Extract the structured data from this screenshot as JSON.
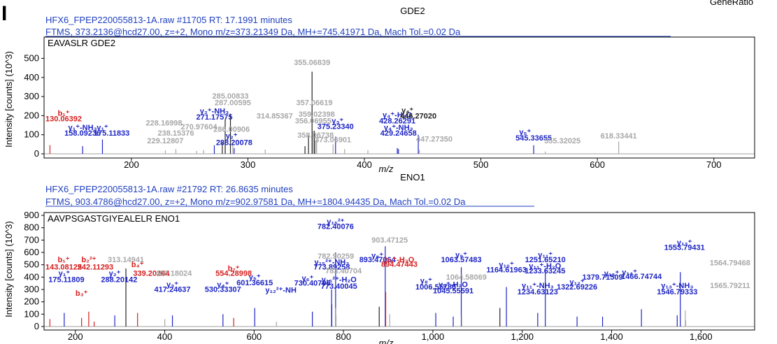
{
  "panel_letter": "I",
  "corner_text": "GeneRatio",
  "colors": {
    "grey": "#a8a8a8",
    "blue": "#1d24c4",
    "red": "#d61f1f",
    "black": "#222222",
    "header": "#1f3fbf"
  },
  "chart_data": [
    {
      "type": "bar",
      "title": "GDE2",
      "header_line1": "HFX6_FPEP220055813-1A.raw #11705 RT: 17.1991 minutes",
      "header_line2": "FTMS, 373.2136@hcd27.00, z=+2, Mono m/z=373.21349 Da, MH+=745.41971 Da, Mach Tol.=0.02 Da",
      "peptide_label": "EAVASLR GDE2",
      "xlabel": "m/z",
      "ylabel": "Intensity [counts] (10^3)",
      "xlim": [
        125,
        735
      ],
      "ylim": [
        0,
        520
      ],
      "xticks": [
        200,
        300,
        400,
        500,
        600,
        700
      ],
      "xtick_labels": [
        "200",
        "300",
        "400",
        "500",
        "600",
        "700"
      ],
      "yticks": [
        0,
        100,
        200,
        300,
        400,
        500
      ],
      "peaks": [
        {
          "mz": 130.06,
          "i": 45,
          "c": "red"
        },
        {
          "mz": 158.09,
          "i": 40,
          "c": "blue"
        },
        {
          "mz": 175.12,
          "i": 75,
          "c": "blue"
        },
        {
          "mz": 229.13,
          "i": 18,
          "c": "grey"
        },
        {
          "mz": 238.15,
          "i": 25,
          "c": "grey"
        },
        {
          "mz": 256.0,
          "i": 15,
          "c": "grey"
        },
        {
          "mz": 262.0,
          "i": 20,
          "c": "grey"
        },
        {
          "mz": 271.18,
          "i": 45,
          "c": "blue"
        },
        {
          "mz": 278.0,
          "i": 60,
          "c": "black"
        },
        {
          "mz": 280.5,
          "i": 180,
          "c": "black"
        },
        {
          "mz": 285.01,
          "i": 210,
          "c": "black"
        },
        {
          "mz": 287.01,
          "i": 60,
          "c": "grey"
        },
        {
          "mz": 288.2,
          "i": 30,
          "c": "blue"
        },
        {
          "mz": 314.85,
          "i": 22,
          "c": "grey"
        },
        {
          "mz": 349.0,
          "i": 40,
          "c": "black"
        },
        {
          "mz": 352.0,
          "i": 95,
          "c": "black"
        },
        {
          "mz": 355.07,
          "i": 430,
          "c": "black"
        },
        {
          "mz": 356.07,
          "i": 120,
          "c": "grey"
        },
        {
          "mz": 357.07,
          "i": 120,
          "c": "black"
        },
        {
          "mz": 358.07,
          "i": 70,
          "c": "grey"
        },
        {
          "mz": 359.02,
          "i": 80,
          "c": "grey"
        },
        {
          "mz": 373.07,
          "i": 50,
          "c": "grey"
        },
        {
          "mz": 375.23,
          "i": 90,
          "c": "blue"
        },
        {
          "mz": 383.0,
          "i": 25,
          "c": "grey"
        },
        {
          "mz": 403.0,
          "i": 20,
          "c": "grey"
        },
        {
          "mz": 428.26,
          "i": 30,
          "c": "blue"
        },
        {
          "mz": 429.25,
          "i": 25,
          "c": "blue"
        },
        {
          "mz": 446.27,
          "i": 100,
          "c": "blue"
        },
        {
          "mz": 447.27,
          "i": 20,
          "c": "grey"
        },
        {
          "mz": 545.34,
          "i": 45,
          "c": "blue"
        },
        {
          "mz": 555.32,
          "i": 12,
          "c": "grey"
        },
        {
          "mz": 618.33,
          "i": 65,
          "c": "grey"
        }
      ],
      "labels": [
        {
          "t": "355.06839",
          "mz": 355.07,
          "y": 465,
          "c": "grey"
        },
        {
          "t": "285.00833",
          "mz": 285.01,
          "y": 290,
          "c": "grey"
        },
        {
          "t": "287.00595",
          "mz": 287.01,
          "y": 255,
          "c": "grey"
        },
        {
          "t": "357.06619",
          "mz": 357.07,
          "y": 255,
          "c": "grey"
        },
        {
          "t": "b₁⁺",
          "mz": 130.06,
          "y": 200,
          "c": "red"
        },
        {
          "t": "130.06392",
          "mz": 139.0,
          "y": 170,
          "c": "red"
        },
        {
          "t": "y₂⁺-NH₃",
          "mz": 271.18,
          "y": 210,
          "c": "blue"
        },
        {
          "t": "271.17575",
          "mz": 271.18,
          "y": 180,
          "c": "blue"
        },
        {
          "t": "314.85367",
          "mz": 323.0,
          "y": 185,
          "c": "grey"
        },
        {
          "t": "359.02398",
          "mz": 359.02,
          "y": 195,
          "c": "grey"
        },
        {
          "t": "356.06955",
          "mz": 356.07,
          "y": 160,
          "c": "grey"
        },
        {
          "t": "y₃⁺",
          "mz": 377.0,
          "y": 160,
          "c": "blue"
        },
        {
          "t": "375.23340",
          "mz": 375.23,
          "y": 130,
          "c": "blue"
        },
        {
          "t": "y₄⁺-H₂O",
          "mz": 428.26,
          "y": 190,
          "c": "blue"
        },
        {
          "t": "428.26291",
          "mz": 428.26,
          "y": 160,
          "c": "blue"
        },
        {
          "t": "y₄⁺",
          "mz": 437.0,
          "y": 215,
          "c": "black"
        },
        {
          "t": "446.27020",
          "mz": 446.27,
          "y": 185,
          "c": "black"
        },
        {
          "t": "228.16998",
          "mz": 228.0,
          "y": 148,
          "c": "grey"
        },
        {
          "t": "270.97604",
          "mz": 258.0,
          "y": 128,
          "c": "grey"
        },
        {
          "t": "238.15376",
          "mz": 238.15,
          "y": 95,
          "c": "grey"
        },
        {
          "t": "y₁⁺-NH₃",
          "mz": 158.09,
          "y": 125,
          "c": "blue"
        },
        {
          "t": "y₁⁺",
          "mz": 175.12,
          "y": 125,
          "c": "blue"
        },
        {
          "t": "158.09236",
          "mz": 158.09,
          "y": 95,
          "c": "blue"
        },
        {
          "t": "175.11833",
          "mz": 183.0,
          "y": 95,
          "c": "blue"
        },
        {
          "t": "286.00906",
          "mz": 286.01,
          "y": 115,
          "c": "grey"
        },
        {
          "t": "y₄⁺-NH₃",
          "mz": 429.25,
          "y": 125,
          "c": "blue"
        },
        {
          "t": "429.24658",
          "mz": 429.25,
          "y": 95,
          "c": "blue"
        },
        {
          "t": "358.06738",
          "mz": 358.07,
          "y": 85,
          "c": "grey"
        },
        {
          "t": "229.12807",
          "mz": 229.13,
          "y": 55,
          "c": "grey"
        },
        {
          "t": "y₂⁺",
          "mz": 286.0,
          "y": 80,
          "c": "blue"
        },
        {
          "t": "288.20078",
          "mz": 288.2,
          "y": 45,
          "c": "blue"
        },
        {
          "t": "373.06901",
          "mz": 373.07,
          "y": 60,
          "c": "grey"
        },
        {
          "t": "447.27350",
          "mz": 460.0,
          "y": 65,
          "c": "grey"
        },
        {
          "t": "y₅⁺",
          "mz": 538.0,
          "y": 100,
          "c": "blue"
        },
        {
          "t": "545.33655",
          "mz": 545.34,
          "y": 70,
          "c": "blue"
        },
        {
          "t": "555.32025",
          "mz": 570.0,
          "y": 55,
          "c": "grey"
        },
        {
          "t": "618.33441",
          "mz": 618.33,
          "y": 80,
          "c": "grey"
        }
      ]
    },
    {
      "type": "bar",
      "title": "ENO1",
      "header_line1": "HFX6_FPEP220055813-1A.raw #21792 RT: 26.8635 minutes",
      "header_line2": "FTMS, 903.4786@hcd27.00, z=+2, Mono m/z=902.97581 Da, MH+=1804.94435 Da, Mach Tol.=0.02 Da",
      "peptide_label": "AAVPSGASTGIYEALELR ENO1",
      "xlabel": "m/z",
      "ylabel": "Intensity [counts] (10^3)",
      "xlim": [
        130,
        1720
      ],
      "ylim": [
        0,
        900
      ],
      "xticks": [
        200,
        400,
        600,
        800,
        1000,
        1200,
        1400,
        1600
      ],
      "xtick_labels": [
        "200",
        "400",
        "600",
        "800",
        "1,000",
        "1,200",
        "1,400",
        "1,600"
      ],
      "yticks": [
        0,
        100,
        200,
        300,
        400,
        500,
        600,
        700,
        800,
        900
      ],
      "peaks": [
        {
          "mz": 143.08,
          "i": 60,
          "c": "red"
        },
        {
          "mz": 175.12,
          "i": 110,
          "c": "blue"
        },
        {
          "mz": 214.0,
          "i": 70,
          "c": "red"
        },
        {
          "mz": 230.0,
          "i": 120,
          "c": "red"
        },
        {
          "mz": 242.11,
          "i": 40,
          "c": "red"
        },
        {
          "mz": 288.2,
          "i": 90,
          "c": "blue"
        },
        {
          "mz": 313.15,
          "i": 470,
          "c": "black"
        },
        {
          "mz": 339.2,
          "i": 110,
          "c": "red"
        },
        {
          "mz": 400.18,
          "i": 60,
          "c": "grey"
        },
        {
          "mz": 417.25,
          "i": 90,
          "c": "blue"
        },
        {
          "mz": 530.33,
          "i": 100,
          "c": "blue"
        },
        {
          "mz": 554.29,
          "i": 70,
          "c": "red"
        },
        {
          "mz": 601.37,
          "i": 150,
          "c": "blue"
        },
        {
          "mz": 650.0,
          "i": 40,
          "c": "grey"
        },
        {
          "mz": 730.41,
          "i": 120,
          "c": "blue"
        },
        {
          "mz": 773.4,
          "i": 300,
          "c": "blue"
        },
        {
          "mz": 773.89,
          "i": 180,
          "c": "blue"
        },
        {
          "mz": 782.4,
          "i": 600,
          "c": "blue"
        },
        {
          "mz": 782.9,
          "i": 150,
          "c": "grey"
        },
        {
          "mz": 783.4,
          "i": 90,
          "c": "grey"
        },
        {
          "mz": 880.0,
          "i": 160,
          "c": "black"
        },
        {
          "mz": 893.47,
          "i": 650,
          "c": "blue"
        },
        {
          "mz": 894.47,
          "i": 280,
          "c": "red"
        },
        {
          "mz": 903.47,
          "i": 100,
          "c": "grey"
        },
        {
          "mz": 1006.56,
          "i": 110,
          "c": "blue"
        },
        {
          "mz": 1045.56,
          "i": 80,
          "c": "blue"
        },
        {
          "mz": 1063.57,
          "i": 480,
          "c": "blue"
        },
        {
          "mz": 1064.58,
          "i": 90,
          "c": "grey"
        },
        {
          "mz": 1150.0,
          "i": 150,
          "c": "black"
        },
        {
          "mz": 1164.62,
          "i": 320,
          "c": "blue"
        },
        {
          "mz": 1234.63,
          "i": 110,
          "c": "blue"
        },
        {
          "mz": 1251.65,
          "i": 460,
          "c": "blue"
        },
        {
          "mz": 1322.69,
          "i": 80,
          "c": "blue"
        },
        {
          "mz": 1379.72,
          "i": 80,
          "c": "blue"
        },
        {
          "mz": 1466.75,
          "i": 140,
          "c": "blue"
        },
        {
          "mz": 1546.79,
          "i": 90,
          "c": "blue"
        },
        {
          "mz": 1553.79,
          "i": 440,
          "c": "blue"
        },
        {
          "mz": 1564.79,
          "i": 130,
          "c": "grey"
        },
        {
          "mz": 1565.79,
          "i": 50,
          "c": "grey"
        }
      ],
      "labels": [
        {
          "t": "y₁₅²⁺",
          "mz": 782.4,
          "y": 830,
          "c": "blue"
        },
        {
          "t": "782.40076",
          "mz": 782.4,
          "y": 790,
          "c": "blue"
        },
        {
          "t": "903.47125",
          "mz": 903.47,
          "y": 680,
          "c": "grey"
        },
        {
          "t": "y₁₃⁺",
          "mz": 1563.0,
          "y": 660,
          "c": "blue"
        },
        {
          "t": "1553.79431",
          "mz": 1563.0,
          "y": 620,
          "c": "blue"
        },
        {
          "t": "313.14941",
          "mz": 313.15,
          "y": 520,
          "c": "grey"
        },
        {
          "t": "782.90259",
          "mz": 782.9,
          "y": 550,
          "c": "grey"
        },
        {
          "t": "y₈⁺",
          "mz": 876.0,
          "y": 555,
          "c": "blue"
        },
        {
          "t": "893.47064",
          "mz": 876.0,
          "y": 520,
          "c": "blue"
        },
        {
          "t": "b₉⁺-H₂O",
          "mz": 925.0,
          "y": 520,
          "c": "red"
        },
        {
          "t": "894.47443",
          "mz": 925.0,
          "y": 485,
          "c": "red"
        },
        {
          "t": "y₉⁺",
          "mz": 1063.57,
          "y": 560,
          "c": "blue"
        },
        {
          "t": "1063.57483",
          "mz": 1063.57,
          "y": 520,
          "c": "blue"
        },
        {
          "t": "y₁₁⁺",
          "mz": 1251.65,
          "y": 560,
          "c": "blue"
        },
        {
          "t": "1251.65210",
          "mz": 1251.65,
          "y": 520,
          "c": "blue"
        },
        {
          "t": "1564.79468",
          "mz": 1665.0,
          "y": 495,
          "c": "grey"
        },
        {
          "t": "b₁⁺",
          "mz": 143.08,
          "y": 520,
          "c": "red"
        },
        {
          "t": "b₂²⁺",
          "mz": 230.0,
          "y": 520,
          "c": "red"
        },
        {
          "t": "143.08125",
          "mz": 168.0,
          "y": 460,
          "c": "red"
        },
        {
          "t": "242.11293",
          "mz": 245.0,
          "y": 460,
          "c": "red"
        },
        {
          "t": "b₄⁺",
          "mz": 339.2,
          "y": 480,
          "c": "red"
        },
        {
          "t": "339.20264",
          "mz": 370.0,
          "y": 410,
          "c": "red"
        },
        {
          "t": "y₁₅²⁺-NH₃",
          "mz": 773.89,
          "y": 500,
          "c": "blue"
        },
        {
          "t": "773.89258",
          "mz": 773.89,
          "y": 460,
          "c": "blue"
        },
        {
          "t": "y₁₀⁺",
          "mz": 1164.62,
          "y": 480,
          "c": "blue"
        },
        {
          "t": "1164.61963",
          "mz": 1164.62,
          "y": 440,
          "c": "blue"
        },
        {
          "t": "y₁₁⁺-H₂O",
          "mz": 1251.0,
          "y": 470,
          "c": "blue"
        },
        {
          "t": "1233.63245",
          "mz": 1251.0,
          "y": 430,
          "c": "blue"
        },
        {
          "t": "b₇⁺",
          "mz": 554.29,
          "y": 450,
          "c": "red"
        },
        {
          "t": "554.28998",
          "mz": 554.29,
          "y": 410,
          "c": "red"
        },
        {
          "t": "783.40704",
          "mz": 800.0,
          "y": 430,
          "c": "grey"
        },
        {
          "t": "y₁⁺",
          "mz": 175.12,
          "y": 410,
          "c": "blue"
        },
        {
          "t": "175.11809",
          "mz": 180.0,
          "y": 360,
          "c": "blue"
        },
        {
          "t": "y₂⁺",
          "mz": 288.2,
          "y": 410,
          "c": "blue"
        },
        {
          "t": "288.20142",
          "mz": 298.0,
          "y": 360,
          "c": "blue"
        },
        {
          "t": "400.18024",
          "mz": 420.0,
          "y": 410,
          "c": "grey"
        },
        {
          "t": "y₅⁺",
          "mz": 601.37,
          "y": 380,
          "c": "blue"
        },
        {
          "t": "601.36615",
          "mz": 601.37,
          "y": 335,
          "c": "blue"
        },
        {
          "t": "y₁₄⁺",
          "mz": 1440.0,
          "y": 420,
          "c": "blue"
        },
        {
          "t": "1466.74744",
          "mz": 1466.75,
          "y": 385,
          "c": "blue"
        },
        {
          "t": "1064.58069",
          "mz": 1075.0,
          "y": 380,
          "c": "grey"
        },
        {
          "t": "y₁₂⁺",
          "mz": 1322.69,
          "y": 340,
          "c": "blue"
        },
        {
          "t": "1379.71509",
          "mz": 1379.72,
          "y": 380,
          "c": "blue"
        },
        {
          "t": "y₁₃⁺",
          "mz": 1400.0,
          "y": 410,
          "c": "blue"
        },
        {
          "t": "1322.69226",
          "mz": 1322.69,
          "y": 300,
          "c": "blue"
        },
        {
          "t": "y₆⁺",
          "mz": 720.0,
          "y": 370,
          "c": "blue"
        },
        {
          "t": "730.40796",
          "mz": 730.41,
          "y": 330,
          "c": "blue"
        },
        {
          "t": "y₁₅²⁺-H₂O",
          "mz": 790.0,
          "y": 360,
          "c": "blue"
        },
        {
          "t": "773.40045",
          "mz": 790.0,
          "y": 305,
          "c": "blue"
        },
        {
          "t": "y₈⁺",
          "mz": 985.0,
          "y": 350,
          "c": "blue"
        },
        {
          "t": "1006.55780",
          "mz": 1006.56,
          "y": 300,
          "c": "blue"
        },
        {
          "t": "y₉⁺-H₂O",
          "mz": 1045.56,
          "y": 320,
          "c": "blue"
        },
        {
          "t": "1045.55591",
          "mz": 1045.56,
          "y": 270,
          "c": "blue"
        },
        {
          "t": "y₁₁⁺-NH₃",
          "mz": 1234.63,
          "y": 310,
          "c": "blue"
        },
        {
          "t": "1234.63123",
          "mz": 1234.63,
          "y": 260,
          "c": "blue"
        },
        {
          "t": "1565.79211",
          "mz": 1665.0,
          "y": 310,
          "c": "grey"
        },
        {
          "t": "y₁₃⁺-NH₃",
          "mz": 1546.79,
          "y": 310,
          "c": "blue"
        },
        {
          "t": "1546.79333",
          "mz": 1546.79,
          "y": 260,
          "c": "blue"
        },
        {
          "t": "y₃⁺",
          "mz": 417.25,
          "y": 320,
          "c": "blue"
        },
        {
          "t": "417.24637",
          "mz": 417.25,
          "y": 280,
          "c": "blue"
        },
        {
          "t": "y₄⁺",
          "mz": 530.33,
          "y": 320,
          "c": "blue"
        },
        {
          "t": "530.33307",
          "mz": 530.33,
          "y": 280,
          "c": "blue"
        },
        {
          "t": "y₁₂²⁺-NH",
          "mz": 660.0,
          "y": 275,
          "c": "blue"
        },
        {
          "t": "b₃⁺",
          "mz": 214.0,
          "y": 250,
          "c": "red"
        }
      ]
    }
  ]
}
